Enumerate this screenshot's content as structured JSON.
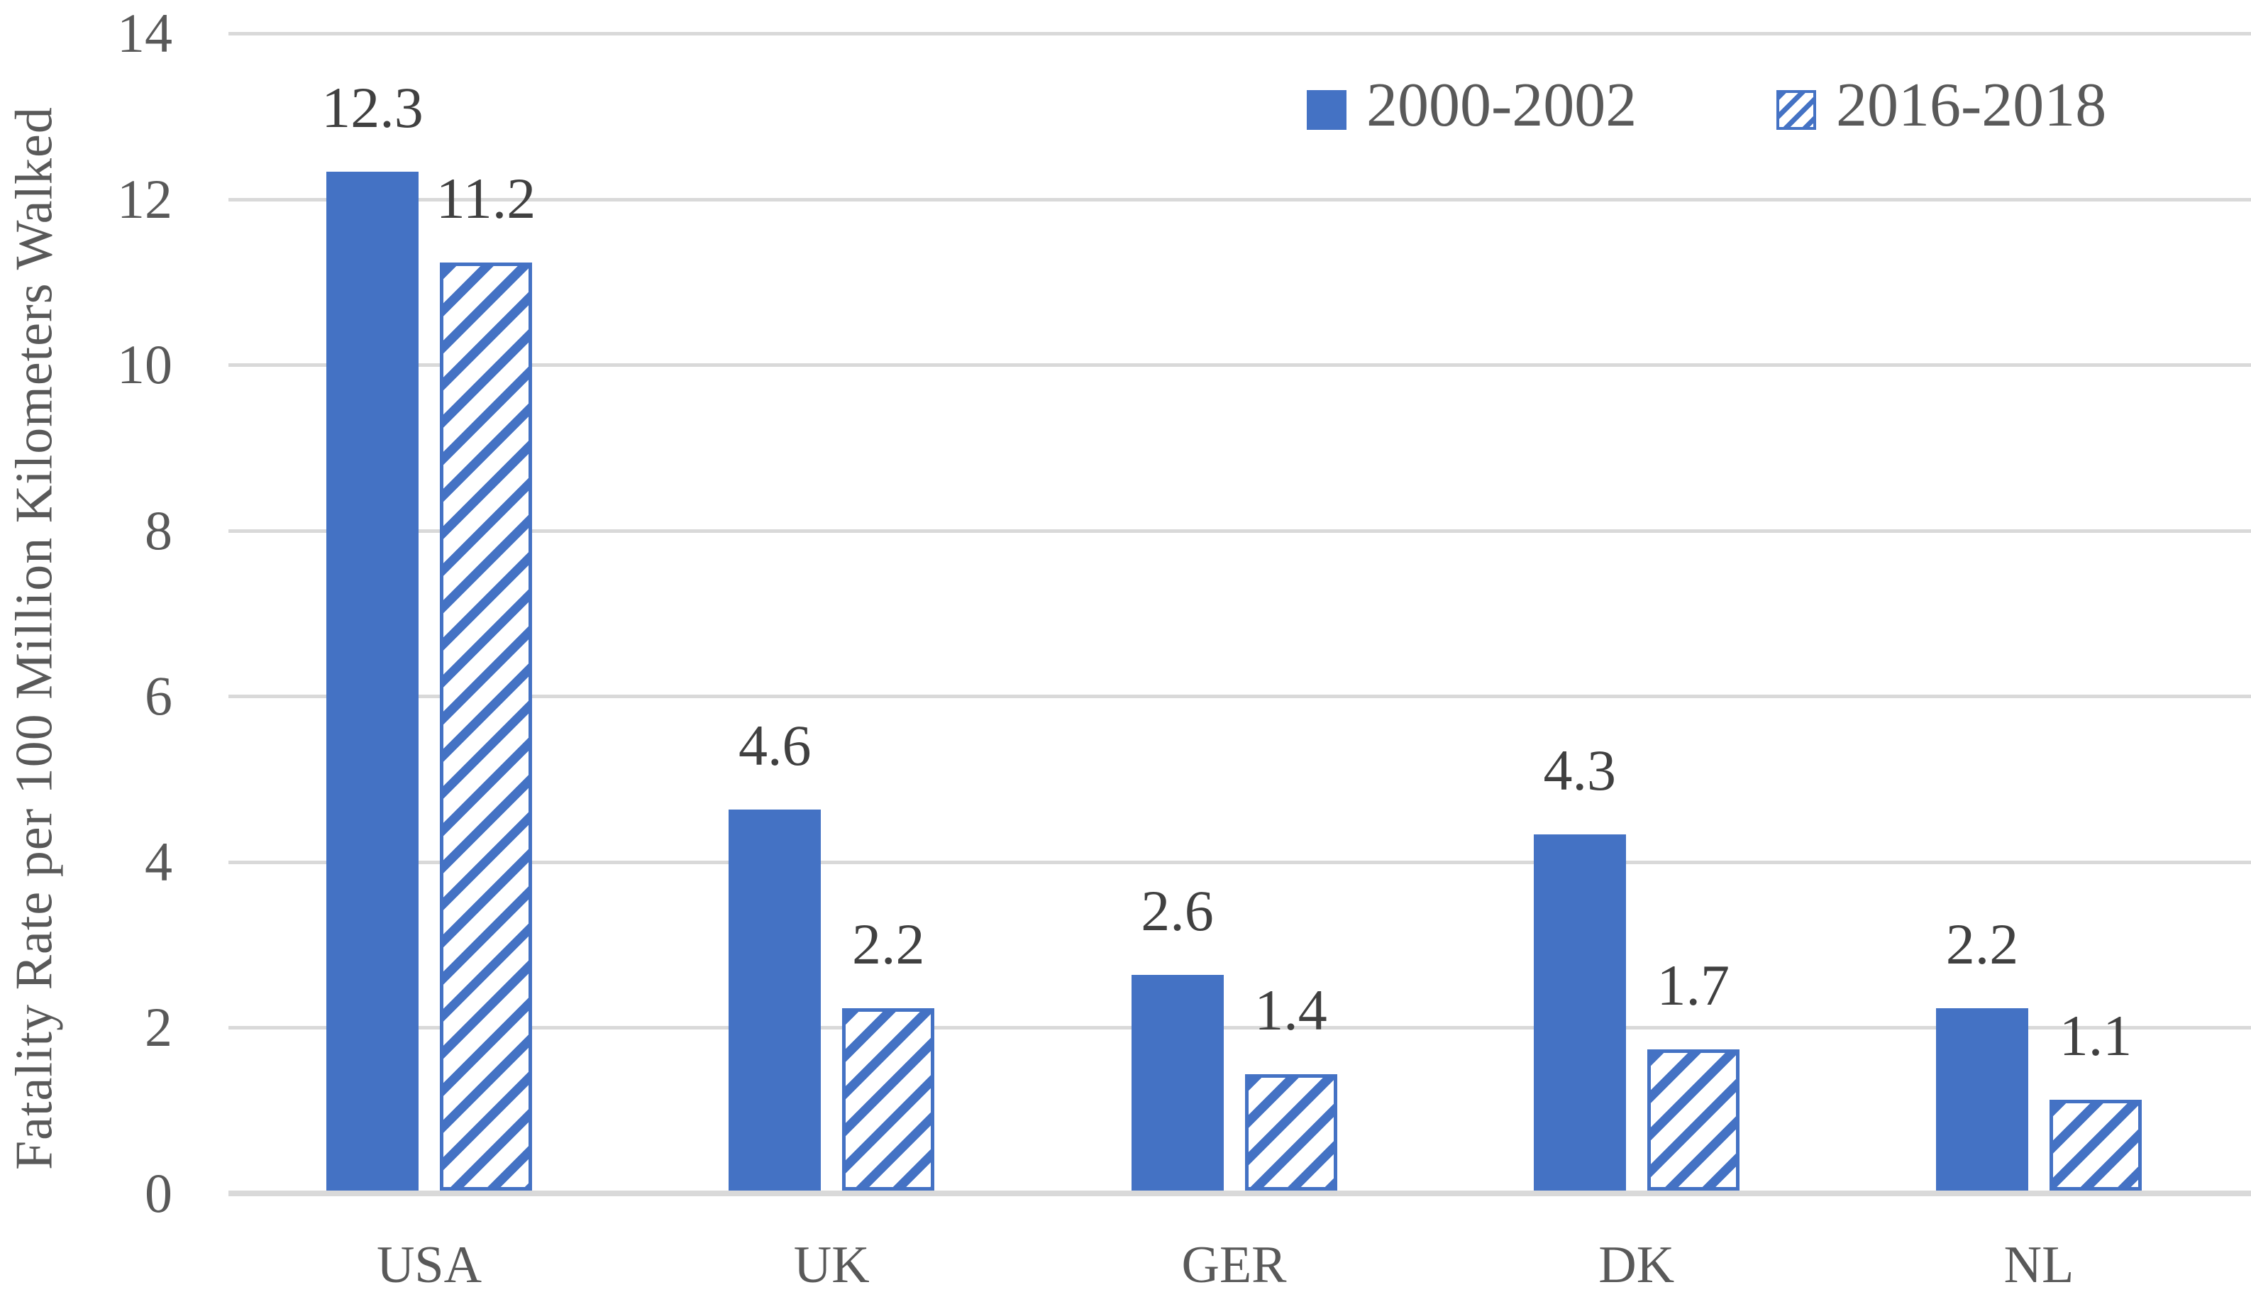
{
  "chart_data": {
    "type": "bar",
    "title": "",
    "xlabel": "",
    "ylabel": "Fatality Rate per 100 Million Kilometers Walked",
    "categories": [
      "USA",
      "UK",
      "GER",
      "DK",
      "NL"
    ],
    "series": [
      {
        "name": "2000-2002",
        "style": "solid",
        "values": [
          12.3,
          4.6,
          2.6,
          4.3,
          2.2
        ]
      },
      {
        "name": "2016-2018",
        "style": "hatched",
        "values": [
          11.2,
          2.2,
          1.4,
          1.7,
          1.1
        ]
      }
    ],
    "data_labels": {
      "2000-2002": [
        "12.3",
        "4.6",
        "2.6",
        "4.3",
        "2.2"
      ],
      "2016-2018": [
        "11.2",
        "2.2",
        "1.4",
        "1.7",
        "1.1"
      ]
    },
    "ylim": [
      0,
      14
    ],
    "yticks": [
      0,
      2,
      4,
      6,
      8,
      10,
      12,
      14
    ],
    "grid": true,
    "legend_position": "top-right",
    "colors": {
      "bar_blue": "#4472C4",
      "gridline": "#D9D9D9",
      "tick_text": "#595959",
      "data_label_text": "#404040",
      "background": "#FFFFFF"
    }
  }
}
